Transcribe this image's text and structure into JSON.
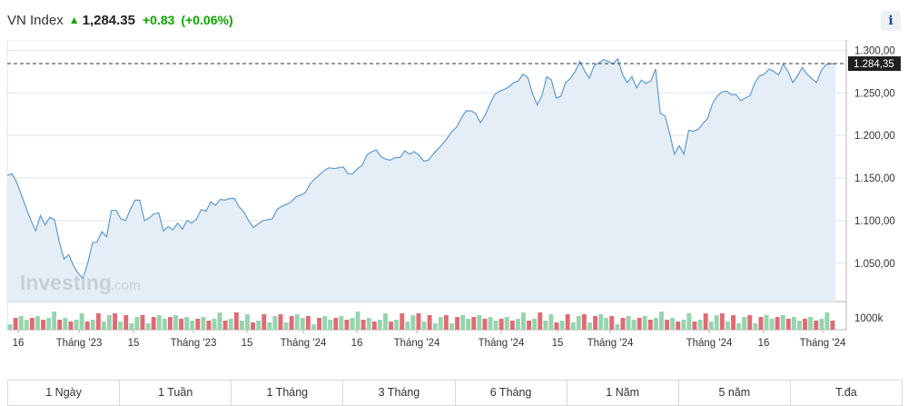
{
  "header": {
    "title": "VN Index",
    "last": "1,284.35",
    "change": "+0.83",
    "change_pct": "(+0.06%)",
    "info_label": "i"
  },
  "watermark": {
    "brand": "Investing",
    "suffix": ".com"
  },
  "chart_data": {
    "type": "area",
    "y_ticks": [
      "1.300,00",
      "1.250,00",
      "1.200,00",
      "1.150,00",
      "1.100,00",
      "1.050,00"
    ],
    "y_tick_values": [
      1300,
      1250,
      1200,
      1150,
      1100,
      1050
    ],
    "ylim": [
      1005,
      1310
    ],
    "last_label": "1.284,35",
    "last_value": 1284.35,
    "volume_label": "1000k",
    "x_labels": [
      "16",
      "Tháng '23",
      "15",
      "Tháng '23",
      "15",
      "Tháng '24",
      "16",
      "Tháng '24",
      "Tháng '24",
      "15",
      "Tháng '24",
      "Tháng '24",
      "16",
      "Tháng '24"
    ],
    "values": [
      1153,
      1155,
      1145,
      1130,
      1115,
      1100,
      1088,
      1106,
      1095,
      1104,
      1101,
      1075,
      1055,
      1060,
      1047,
      1038,
      1032,
      1050,
      1074,
      1075,
      1087,
      1081,
      1112,
      1112,
      1102,
      1100,
      1113,
      1124,
      1124,
      1100,
      1103,
      1108,
      1109,
      1088,
      1093,
      1089,
      1097,
      1090,
      1100,
      1097,
      1102,
      1113,
      1111,
      1122,
      1118,
      1125,
      1124,
      1126,
      1126,
      1116,
      1110,
      1100,
      1092,
      1096,
      1100,
      1101,
      1102,
      1113,
      1117,
      1119,
      1122,
      1128,
      1130,
      1133,
      1143,
      1149,
      1154,
      1159,
      1162,
      1161,
      1162,
      1163,
      1155,
      1155,
      1161,
      1165,
      1177,
      1181,
      1183,
      1175,
      1172,
      1171,
      1174,
      1174,
      1182,
      1178,
      1181,
      1177,
      1170,
      1171,
      1178,
      1184,
      1190,
      1197,
      1205,
      1210,
      1221,
      1229,
      1229,
      1226,
      1215,
      1224,
      1237,
      1248,
      1252,
      1254,
      1257,
      1262,
      1264,
      1272,
      1268,
      1249,
      1236,
      1247,
      1269,
      1265,
      1244,
      1246,
      1262,
      1267,
      1275,
      1287,
      1276,
      1267,
      1282,
      1285,
      1289,
      1287,
      1284,
      1290,
      1272,
      1262,
      1269,
      1256,
      1265,
      1261,
      1264,
      1278,
      1226,
      1223,
      1202,
      1178,
      1188,
      1178,
      1206,
      1205,
      1207,
      1214,
      1220,
      1237,
      1246,
      1251,
      1252,
      1248,
      1248,
      1241,
      1244,
      1247,
      1262,
      1270,
      1272,
      1278,
      1275,
      1271,
      1284,
      1275,
      1262,
      1270,
      1280,
      1272,
      1267,
      1262,
      1276,
      1283,
      1284.35,
      1284.35
    ],
    "volume_bar_count": 150,
    "colors": {
      "line": "#5b9bd5",
      "area": "#e5eef6",
      "vol_up": "#96d4ae",
      "vol_down": "#e06a73",
      "grid": "#dfe4ea",
      "axis": "#b5b5b5"
    }
  },
  "tabs": [
    "1 Ngày",
    "1 Tuần",
    "1 Tháng",
    "3 Tháng",
    "6 Tháng",
    "1 Năm",
    "5 năm",
    "T.đa"
  ]
}
